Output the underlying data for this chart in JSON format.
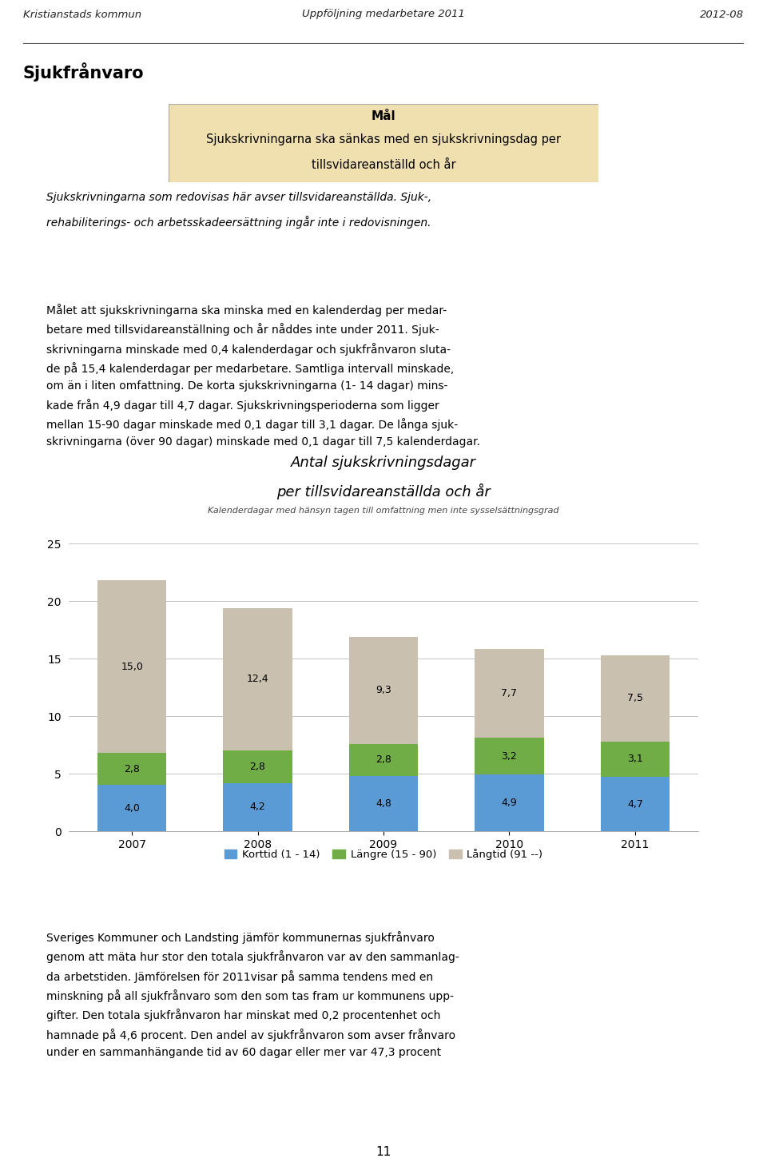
{
  "header_left": "Kristianstads kommun",
  "header_center": "Uppföljning medarbetare 2011",
  "header_right": "2012-08",
  "section_title": "Sjukfrånvaro",
  "goal_box_title": "Mål",
  "goal_box_line1": "Sjukskrivningarna ska sänkas med en sjukskrivningsdag per",
  "goal_box_line2": "tillsvidareanställd och år",
  "goal_box_subtitle1": "Sjukskrivningarna som redovisas här avser tillsvidareanställda. Sjuk-,",
  "goal_box_subtitle2": "rehabiliterings- och arbetsskadeersättning ingår inte i redovisningen.",
  "body_text_lines": [
    "Målet att sjukskrivningarna ska minska med en kalenderdag per medar-",
    "betare med tillsvidareanställning och år nåddes inte under 2011. Sjuk-",
    "skrivningarna minskade med 0,4 kalenderdagar och sjukfrånvaron sluta-",
    "de på 15,4 kalenderdagar per medarbetare. Samtliga intervall minskade,",
    "om än i liten omfattning. De korta sjukskrivningarna (1- 14 dagar) mins-",
    "kade från 4,9 dagar till 4,7 dagar. Sjukskrivningsperioderna som ligger",
    "mellan 15-90 dagar minskade med 0,1 dagar till 3,1 dagar. De långa sjuk-",
    "skrivningarna (över 90 dagar) minskade med 0,1 dagar till 7,5 kalenderdagar."
  ],
  "chart_title_line1": "Antal sjukskrivningsdagar",
  "chart_title_line2": "per tillsvidareanställda och år",
  "chart_subtitle": "Kalenderdagar med hänsyn tagen till omfattning men inte sysselsättningsgrad",
  "years": [
    "2007",
    "2008",
    "2009",
    "2010",
    "2011"
  ],
  "korttid": [
    4.0,
    4.2,
    4.8,
    4.9,
    4.7
  ],
  "langre": [
    2.8,
    2.8,
    2.8,
    3.2,
    3.1
  ],
  "langtid": [
    15.0,
    12.4,
    9.3,
    7.7,
    7.5
  ],
  "color_korttid": "#5b9bd5",
  "color_langre": "#70ad47",
  "color_langtid": "#c9c0b0",
  "legend_korttid": "Korttid (1 - 14)",
  "legend_langre": "Längre (15 - 90)",
  "legend_langtid": "Långtid (91 --)",
  "footer_text_lines": [
    "Sveriges Kommuner och Landsting jämför kommunernas sjukfrånvaro",
    "genom att mäta hur stor den totala sjukfrånvaron var av den sammanlag-",
    "da arbetstiden. Jämförelsen för 2011visar på samma tendens med en",
    "minskning på all sjukfrånvaro som den som tas fram ur kommunens upp-",
    "gifter. Den totala sjukfrånvaron har minskat med 0,2 procentenhet och",
    "hamnade på 4,6 procent. Den andel av sjukfrånvaron som avser frånvaro",
    "under en sammanhängande tid av 60 dagar eller mer var 47,3 procent"
  ],
  "page_number": "11",
  "goal_box_bg": "#f0e0b0",
  "ylim": [
    0,
    25
  ],
  "yticks": [
    0,
    5,
    10,
    15,
    20,
    25
  ]
}
